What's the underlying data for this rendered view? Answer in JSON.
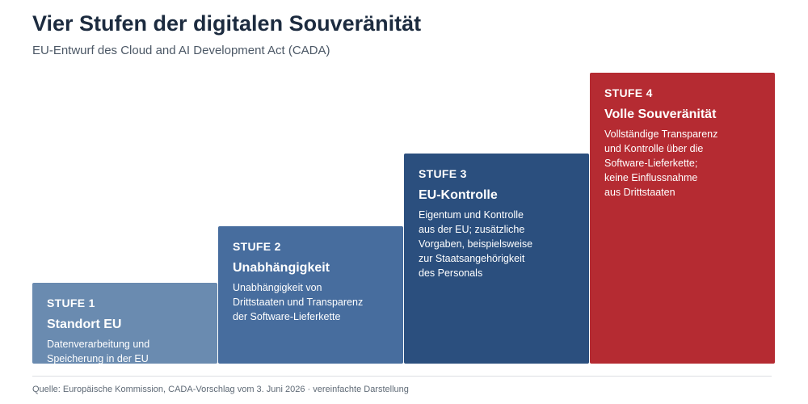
{
  "header": {
    "title": "Vier Stufen der digitalen Souveränität",
    "subtitle": "EU-Entwurf des Cloud and AI Development Act (CADA)"
  },
  "steps": [
    {
      "label": "STUFE 1",
      "name": "Standort EU",
      "description": "Datenverarbeitung und\nSpeicherung in der EU",
      "color": "#6a8bb0"
    },
    {
      "label": "STUFE 2",
      "name": "Unabhängigkeit",
      "description": "Unabhängigkeit von\nDrittstaaten und Transparenz\nder Software-Lieferkette",
      "color": "#476d9e"
    },
    {
      "label": "STUFE 3",
      "name": "EU-Kontrolle",
      "description": "Eigentum und Kontrolle\naus der EU; zusätzliche\nVorgaben, beispielsweise\nzur Staatsangehörigkeit\ndes Personals",
      "color": "#2b4f7e"
    },
    {
      "label": "STUFE 4",
      "name": "Volle Souveränität",
      "description": "Vollständige Transparenz\nund Kontrolle über die\nSoftware-Lieferkette;\nkeine Einflussnahme\naus Drittstaaten",
      "color": "#b52b32"
    }
  ],
  "footer": {
    "source": "Quelle: Europäische Kommission, CADA-Vorschlag vom 3. Juni 2026 · vereinfachte Darstellung"
  }
}
